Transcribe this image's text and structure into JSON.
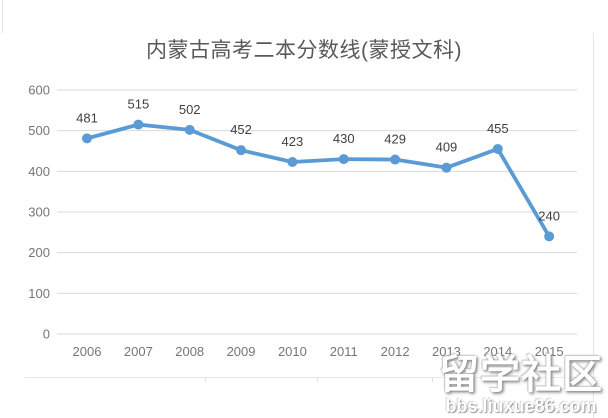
{
  "chart_data": {
    "type": "line",
    "title": "内蒙古高考二本分数线(蒙授文科)",
    "categories": [
      "2006",
      "2007",
      "2008",
      "2009",
      "2010",
      "2011",
      "2012",
      "2013",
      "2014",
      "2015"
    ],
    "values": [
      481,
      515,
      502,
      452,
      423,
      430,
      429,
      409,
      455,
      240
    ],
    "xlabel": "",
    "ylabel": "",
    "ylim": [
      0,
      600
    ],
    "yticks": [
      0,
      100,
      200,
      300,
      400,
      500,
      600
    ],
    "grid": true,
    "legend": "none",
    "data_labels": true,
    "colors": {
      "line": "#5b9bd5",
      "marker": "#5b9bd5",
      "grid": "#d9d9d9",
      "axis_text": "#767676",
      "data_label_text": "#404040",
      "title_text": "#595959"
    }
  },
  "watermark": {
    "line1": "留学社区",
    "line2": "bbs.liuxue86.com"
  }
}
